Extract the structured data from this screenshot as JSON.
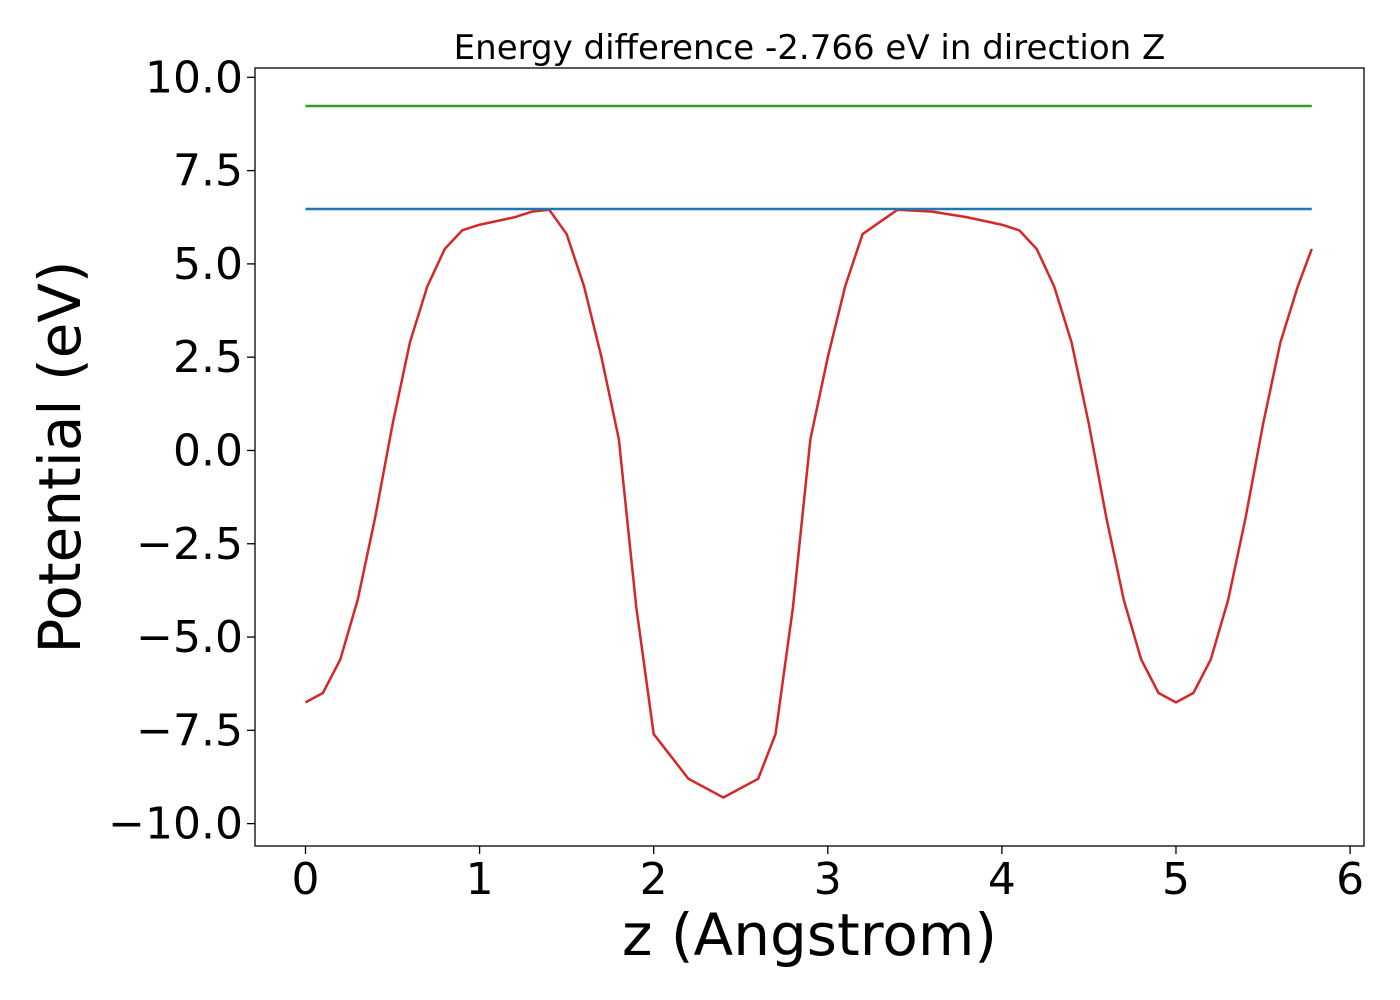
{
  "chart_data": {
    "type": "line",
    "title": "Energy difference -2.766 eV in direction Z",
    "xlabel": "z (Angstrom)",
    "ylabel": "Potential (eV)",
    "xlim": [
      -0.29,
      6.08
    ],
    "ylim": [
      -10.6,
      10.25
    ],
    "xticks": [
      0,
      1,
      2,
      3,
      4,
      5,
      6
    ],
    "xtick_labels": [
      "0",
      "1",
      "2",
      "3",
      "4",
      "5",
      "6"
    ],
    "yticks": [
      10.0,
      7.5,
      5.0,
      2.5,
      0.0,
      -2.5,
      -5.0,
      -7.5,
      -10.0
    ],
    "ytick_labels": [
      "10.0",
      "7.5",
      "5.0",
      "2.5",
      "0.0",
      "−2.5",
      "−5.0",
      "−7.5",
      "−10.0"
    ],
    "grid": false,
    "series": [
      {
        "color": "#d62728",
        "x": [
          0,
          0.1,
          0.2,
          0.3,
          0.4,
          0.5,
          0.6,
          0.7,
          0.8,
          0.9,
          1.0,
          1.1,
          1.2,
          1.3,
          1.4,
          1.5,
          1.6,
          1.7,
          1.8,
          1.9,
          2.0,
          2.2,
          2.4,
          2.6,
          2.7,
          2.8,
          2.9,
          3.0,
          3.1,
          3.2,
          3.4,
          3.6,
          3.8,
          3.9,
          4.0,
          4.1,
          4.2,
          4.3,
          4.4,
          4.5,
          4.6,
          4.7,
          4.8,
          4.9,
          5.0,
          5.1,
          5.2,
          5.3,
          5.4,
          5.5,
          5.6,
          5.7,
          5.78
        ],
        "y": [
          -6.75,
          -6.5,
          -5.6,
          -4.0,
          -1.8,
          0.7,
          2.9,
          4.4,
          5.4,
          5.9,
          6.05,
          6.15,
          6.25,
          6.4,
          6.45,
          5.8,
          4.4,
          2.5,
          0.3,
          -4.2,
          -7.6,
          -8.8,
          -9.3,
          -8.8,
          -7.6,
          -4.2,
          0.3,
          2.5,
          4.4,
          5.8,
          6.45,
          6.4,
          6.25,
          6.15,
          6.05,
          5.9,
          5.4,
          4.4,
          2.9,
          0.7,
          -1.8,
          -4.0,
          -5.6,
          -6.5,
          -6.75,
          -6.5,
          -5.6,
          -4.0,
          -1.8,
          0.7,
          2.9,
          4.4,
          5.4
        ]
      },
      {
        "color": "#1f77b4",
        "x": [
          0,
          5.78
        ],
        "y": [
          6.47,
          6.47
        ]
      },
      {
        "color": "#2ca02c",
        "x": [
          0,
          5.78
        ],
        "y": [
          9.23,
          9.23
        ]
      }
    ]
  }
}
